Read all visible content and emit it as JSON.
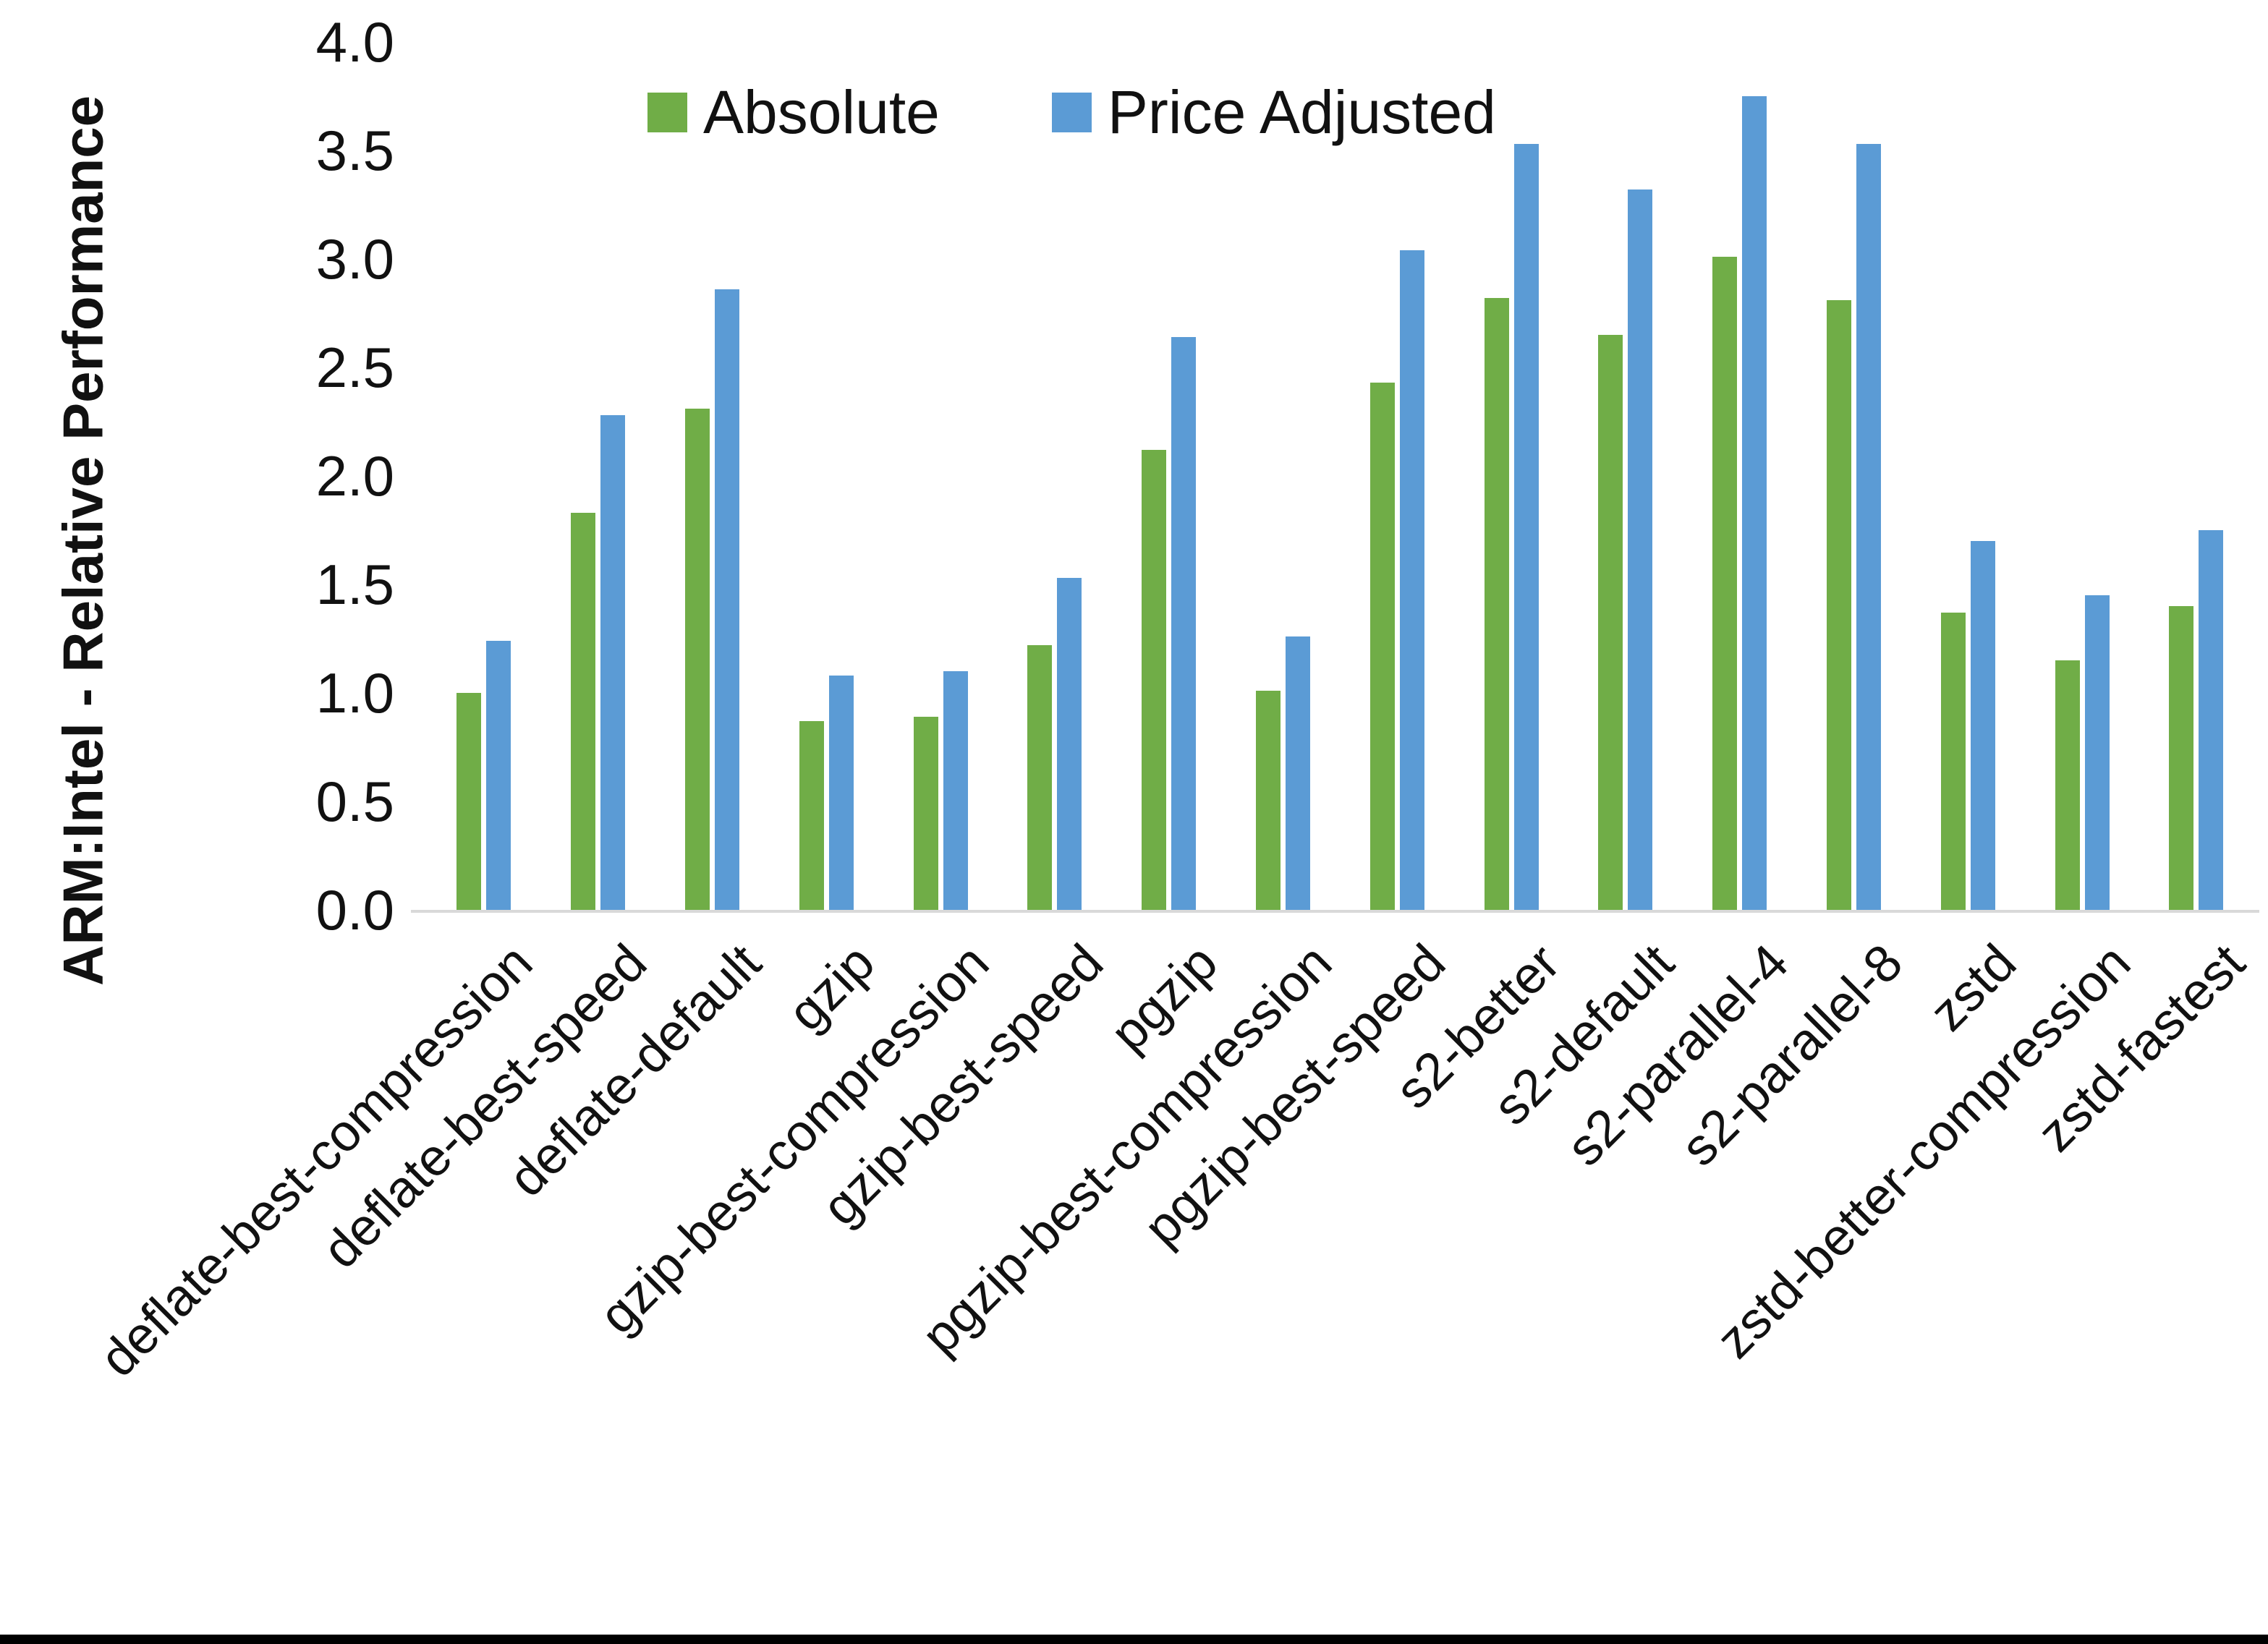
{
  "chart_data": {
    "type": "bar",
    "title": "",
    "xlabel": "",
    "ylabel": "ARM:Intel - Relative Performance",
    "ylim": [
      0.0,
      4.0
    ],
    "ytick_step": 0.5,
    "yticks": [
      "0.0",
      "0.5",
      "1.0",
      "1.5",
      "2.0",
      "2.5",
      "3.0",
      "3.5",
      "4.0"
    ],
    "grid": false,
    "legend_position": "top",
    "axis_line_color": "#d9d9d9",
    "text_color": "#111111",
    "categories": [
      "deflate-best-compression",
      "deflate-best-speed",
      "deflate-default",
      "gzip",
      "gzip-best-compression",
      "gzip-best-speed",
      "pgzip",
      "pgzip-best-compression",
      "pgzip-best-speed",
      "s2-better",
      "s2-default",
      "s2-parallel-4",
      "s2-parallel-8",
      "zstd",
      "zstd-better-compression",
      "zstd-fastest"
    ],
    "series": [
      {
        "name": "Absolute",
        "color": "#70AD47",
        "values": [
          1.0,
          1.83,
          2.31,
          0.87,
          0.89,
          1.22,
          2.12,
          1.01,
          2.43,
          2.82,
          2.65,
          3.01,
          2.81,
          1.37,
          1.15,
          1.4
        ]
      },
      {
        "name": "Price Adjusted",
        "color": "#5B9BD5",
        "values": [
          1.24,
          2.28,
          2.86,
          1.08,
          1.1,
          1.53,
          2.64,
          1.26,
          3.04,
          3.53,
          3.32,
          3.75,
          3.53,
          1.7,
          1.45,
          1.75
        ]
      }
    ]
  }
}
